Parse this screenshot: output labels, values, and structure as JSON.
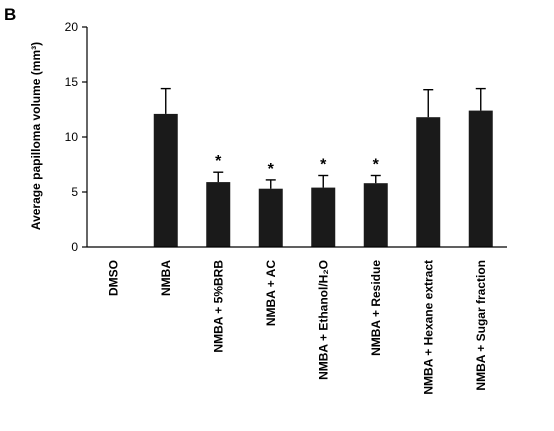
{
  "panel_label": "B",
  "chart_data": {
    "type": "bar",
    "ylabel": "Average papilloma volume (mm³)",
    "xlabel": "",
    "ylim": [
      0,
      20
    ],
    "yticks": [
      0,
      5,
      10,
      15,
      20
    ],
    "categories": [
      "DMSO",
      "NMBA",
      "NMBA + 5%BRB",
      "NMBA + AC",
      "NMBA + Ethanol/H₂O",
      "NMBA + Residue",
      "NMBA + Hexane extract",
      "NMBA + Sugar fraction"
    ],
    "values": [
      0,
      12.1,
      5.9,
      5.3,
      5.4,
      5.8,
      11.8,
      12.4
    ],
    "errors": [
      0,
      2.3,
      0.9,
      0.8,
      1.1,
      0.7,
      2.5,
      2.0
    ],
    "annotations": [
      "",
      "",
      "*",
      "*",
      "*",
      "*",
      "",
      ""
    ],
    "bar_color": "#1a1a1a",
    "grid": false,
    "legend": "none"
  }
}
